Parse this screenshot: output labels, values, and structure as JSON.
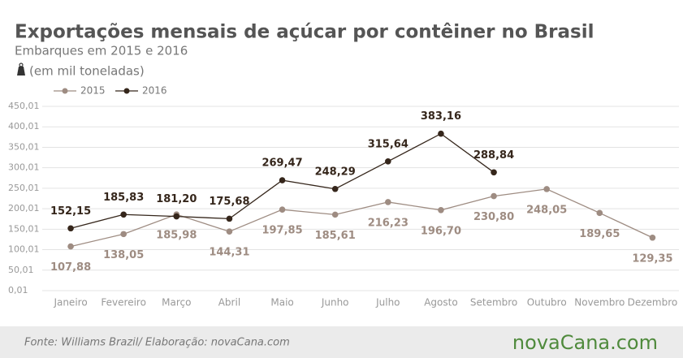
{
  "chart_data": {
    "type": "line",
    "title": "Exportações mensais de açúcar por contêiner no Brasil",
    "subtitle": "Embarques em 2015 e 2016",
    "unit_note": "(em mil toneladas)",
    "source": "Fonte:  Williams  Brazil/  Elaboração:  novaCana.com",
    "logo": "novaCana.com",
    "categories": [
      "Janeiro",
      "Fevereiro",
      "Março",
      "Abril",
      "Maio",
      "Junho",
      "Julho",
      "Agosto",
      "Setembro",
      "Outubro",
      "Novembro",
      "Dezembro"
    ],
    "series": [
      {
        "name": "2015",
        "color": "#9e8c82",
        "values": [
          107.88,
          138.05,
          185.98,
          144.31,
          197.85,
          185.61,
          216.23,
          196.7,
          230.8,
          248.05,
          189.65,
          129.35
        ],
        "value_labels": [
          "107,88",
          "138,05",
          "185,98",
          "144,31",
          "197,85",
          "185,61",
          "216,23",
          "196,70",
          "230,80",
          "248,05",
          "189,65",
          "129,35"
        ]
      },
      {
        "name": "2016",
        "color": "#35261b",
        "values": [
          152.15,
          185.83,
          181.2,
          175.68,
          269.47,
          248.29,
          315.64,
          383.16,
          288.84,
          null,
          null,
          null
        ],
        "value_labels": [
          "152,15",
          "185,83",
          "181,20",
          "175,68",
          "269,47",
          "248,29",
          "315,64",
          "383,16",
          "288,84",
          null,
          null,
          null
        ]
      }
    ],
    "ylim": [
      0.01,
      450.01
    ],
    "yticks": [
      {
        "value": 0.01,
        "label": "0,01"
      },
      {
        "value": 50.01,
        "label": "50,01"
      },
      {
        "value": 100.01,
        "label": "100,01"
      },
      {
        "value": 150.01,
        "label": "150,01"
      },
      {
        "value": 200.01,
        "label": "200,01"
      },
      {
        "value": 250.01,
        "label": "250,01"
      },
      {
        "value": 300.01,
        "label": "300,01"
      },
      {
        "value": 350.01,
        "label": "350,01"
      },
      {
        "value": 400.01,
        "label": "400,01"
      },
      {
        "value": 450.01,
        "label": "450,01"
      }
    ],
    "grid": true
  }
}
